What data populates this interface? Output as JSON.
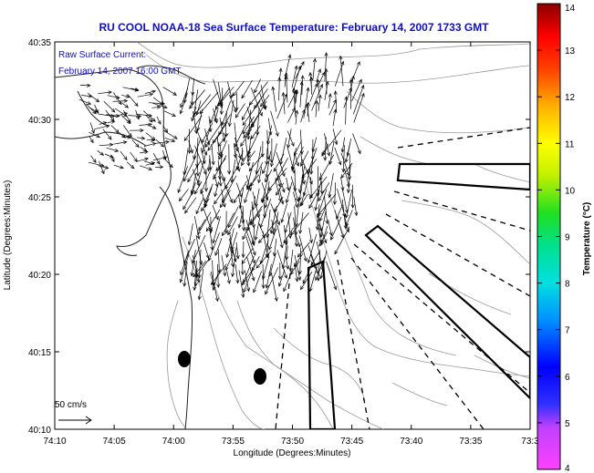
{
  "title": "RU COOL  NOAA-18  Sea Surface Temperature:  February 14, 2007 1733 GMT",
  "annotation": {
    "line1": "Raw Surface Current:",
    "line2": "February 14, 2007 16:00 GMT"
  },
  "scale_label": "50 cm/s",
  "x_axis": {
    "label": "Longitude (Degrees:Minutes)",
    "ticks": [
      "74:10",
      "74:05",
      "74:00",
      "73:55",
      "73:50",
      "73:45",
      "73:40",
      "73:35",
      "73:3"
    ]
  },
  "y_axis": {
    "label": "Latitude (Degrees:Minutes)",
    "ticks": [
      "40:10",
      "40:15",
      "40:20",
      "40:25",
      "40:30",
      "40:35"
    ]
  },
  "colorbar": {
    "label": "Temperature (°C)",
    "ticks": [
      "4",
      "5",
      "6",
      "7",
      "8",
      "9",
      "10",
      "11",
      "12",
      "13",
      "14"
    ],
    "range": [
      4,
      14
    ]
  },
  "colors": {
    "title_text": "#1010c0",
    "land_outline": "#222222",
    "bathymetry": "#999999",
    "vectors": "#000000"
  }
}
